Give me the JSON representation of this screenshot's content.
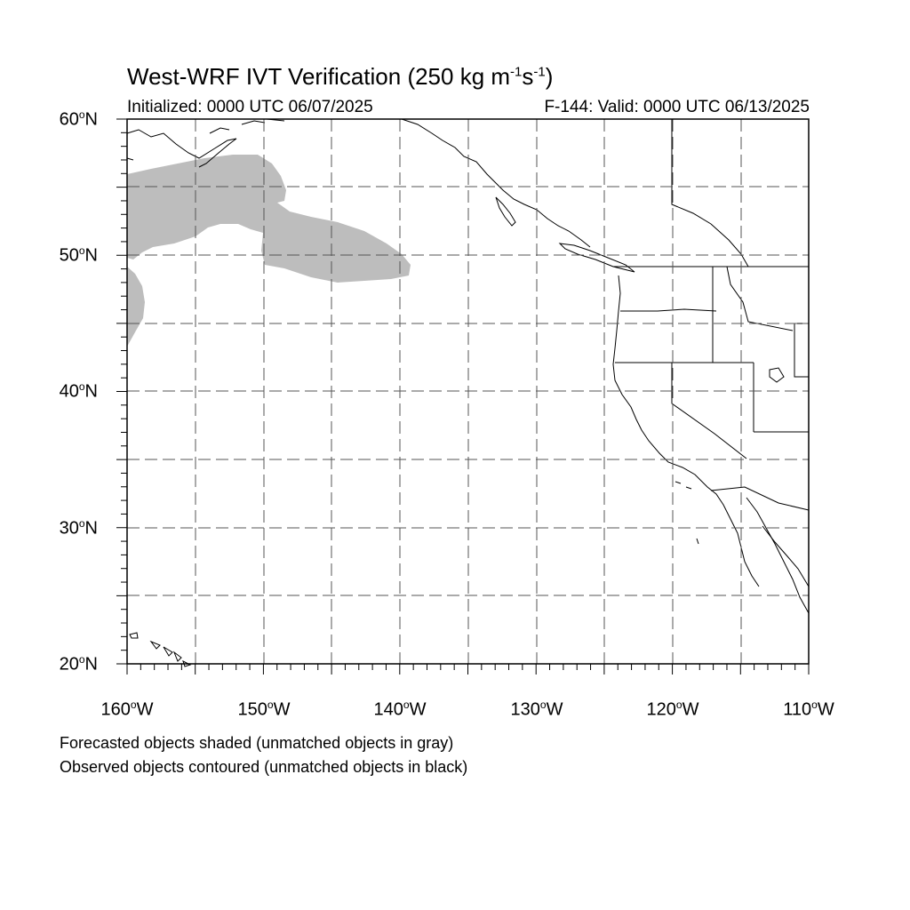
{
  "title": {
    "main": "West-WRF IVT Verification (250 kg m",
    "exp1": "-1",
    "mid": "s",
    "exp2": "-1",
    "end": ")"
  },
  "initialized": "Initialized: 0000 UTC 06/07/2025",
  "valid": "F-144: Valid: 0000 UTC 06/13/2025",
  "lat_labels": [
    {
      "num": "60",
      "deg": "o",
      "hem": "N"
    },
    {
      "num": "50",
      "deg": "o",
      "hem": "N"
    },
    {
      "num": "40",
      "deg": "o",
      "hem": "N"
    },
    {
      "num": "30",
      "deg": "o",
      "hem": "N"
    },
    {
      "num": "20",
      "deg": "o",
      "hem": "N"
    }
  ],
  "lon_labels": [
    {
      "num": "160",
      "deg": "o",
      "hem": "W"
    },
    {
      "num": "150",
      "deg": "o",
      "hem": "W"
    },
    {
      "num": "140",
      "deg": "o",
      "hem": "W"
    },
    {
      "num": "130",
      "deg": "o",
      "hem": "W"
    },
    {
      "num": "120",
      "deg": "o",
      "hem": "W"
    },
    {
      "num": "110",
      "deg": "o",
      "hem": "W"
    }
  ],
  "notes": [
    "Forecasted objects shaded (unmatched objects in gray)",
    "Observed objects contoured (unmatched objects in black)"
  ],
  "colors": {
    "unmatched_forecast": "#bdbdbd",
    "lines": "#000000",
    "background": "#ffffff"
  }
}
